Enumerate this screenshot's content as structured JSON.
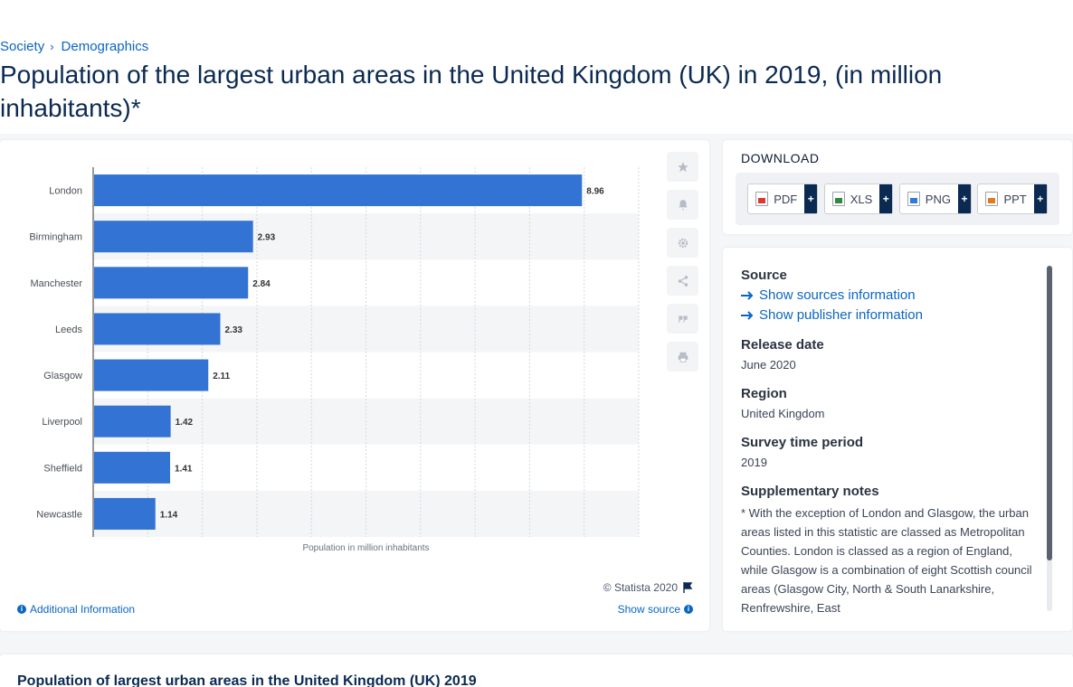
{
  "breadcrumb": {
    "items": [
      "Society",
      "Demographics"
    ],
    "separator": "›"
  },
  "page_title": "Population of the largest urban areas in the United Kingdom (UK) in 2019, (in million inhabitants)*",
  "chart_data": {
    "type": "bar",
    "orientation": "horizontal",
    "categories": [
      "London",
      "Birmingham",
      "Manchester",
      "Leeds",
      "Glasgow",
      "Liverpool",
      "Sheffield",
      "Newcastle"
    ],
    "series": [
      {
        "values": [
          8.96,
          2.93,
          2.84,
          2.33,
          2.11,
          1.42,
          1.41,
          1.14
        ]
      }
    ],
    "data_labels": [
      "8.96",
      "2.93",
      "2.84",
      "2.33",
      "2.11",
      "1.42",
      "1.41",
      "1.14"
    ],
    "xlabel": "Population in million inhabitants",
    "xlim": [
      0,
      10
    ],
    "grid": true,
    "bar_color": "#3273d4"
  },
  "chart_footer": {
    "copyright": "© Statista 2020",
    "additional_info": "Additional Information",
    "show_source": "Show source"
  },
  "side_tools": [
    "star-icon",
    "bell-icon",
    "gear-icon",
    "share-icon",
    "quote-icon",
    "print-icon"
  ],
  "download": {
    "heading": "DOWNLOAD",
    "buttons": [
      {
        "label": "PDF",
        "icon": "pdf-file-icon"
      },
      {
        "label": "XLS",
        "icon": "xls-file-icon"
      },
      {
        "label": "PNG",
        "icon": "png-file-icon"
      },
      {
        "label": "PPT",
        "icon": "ppt-file-icon"
      }
    ],
    "plus": "+"
  },
  "info": {
    "source_heading": "Source",
    "show_sources": "Show sources information",
    "show_publisher": "Show publisher information",
    "release_heading": "Release date",
    "release_value": "June 2020",
    "region_heading": "Region",
    "region_value": "United Kingdom",
    "survey_heading": "Survey time period",
    "survey_value": "2019",
    "notes_heading": "Supplementary notes",
    "notes_text": "* With the exception of London and Glasgow, the urban areas listed in this statistic are classed as Metropolitan Counties. London is classed as a region of England, while Glasgow is a combination of eight Scottish council areas (Glasgow City, North & South Lanarkshire, Renfrewshire, East"
  },
  "bottom": {
    "title": "Population of largest urban areas in the United Kingdom (UK) 2019"
  },
  "colors": {
    "accent": "#0a66c2",
    "title": "#0b2a52",
    "bar": "#3273d4"
  }
}
